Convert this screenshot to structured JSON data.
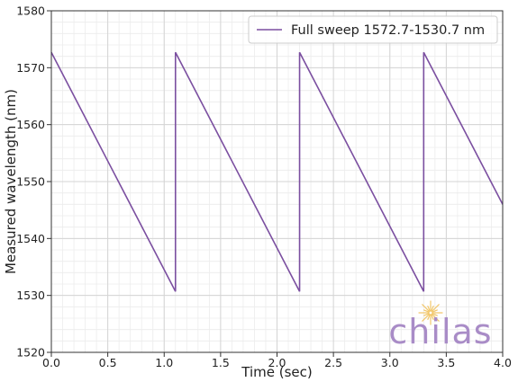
{
  "chart_data": {
    "type": "line",
    "title": "",
    "xlabel": "Time (sec)",
    "ylabel": "Measured wavelength (nm)",
    "xlim": [
      0.0,
      4.0
    ],
    "ylim": [
      1520,
      1580
    ],
    "xticks": [
      0.0,
      0.5,
      1.0,
      1.5,
      2.0,
      2.5,
      3.0,
      3.5,
      4.0
    ],
    "xtick_labels": [
      "0.0",
      "0.5",
      "1.0",
      "1.5",
      "2.0",
      "2.5",
      "3.0",
      "3.5",
      "4.0"
    ],
    "yticks": [
      1520,
      1530,
      1540,
      1550,
      1560,
      1570,
      1580
    ],
    "ytick_labels": [
      "1520",
      "1530",
      "1540",
      "1550",
      "1560",
      "1570",
      "1580"
    ],
    "grid": true,
    "minor_grid": true,
    "legend_position": "top-right",
    "series": [
      {
        "name": "Full sweep 1572.7-1530.7 nm",
        "color": "#7b4fa0",
        "x": [
          0.0,
          1.1,
          1.1,
          2.2,
          2.2,
          3.3,
          3.3,
          4.0
        ],
        "y": [
          1572.7,
          1530.7,
          1572.7,
          1530.7,
          1572.7,
          1530.7,
          1572.7,
          1546.0
        ]
      }
    ]
  },
  "watermark": {
    "text": "chilas",
    "color": "#a98cc7",
    "accent_color": "#f2c76b"
  }
}
